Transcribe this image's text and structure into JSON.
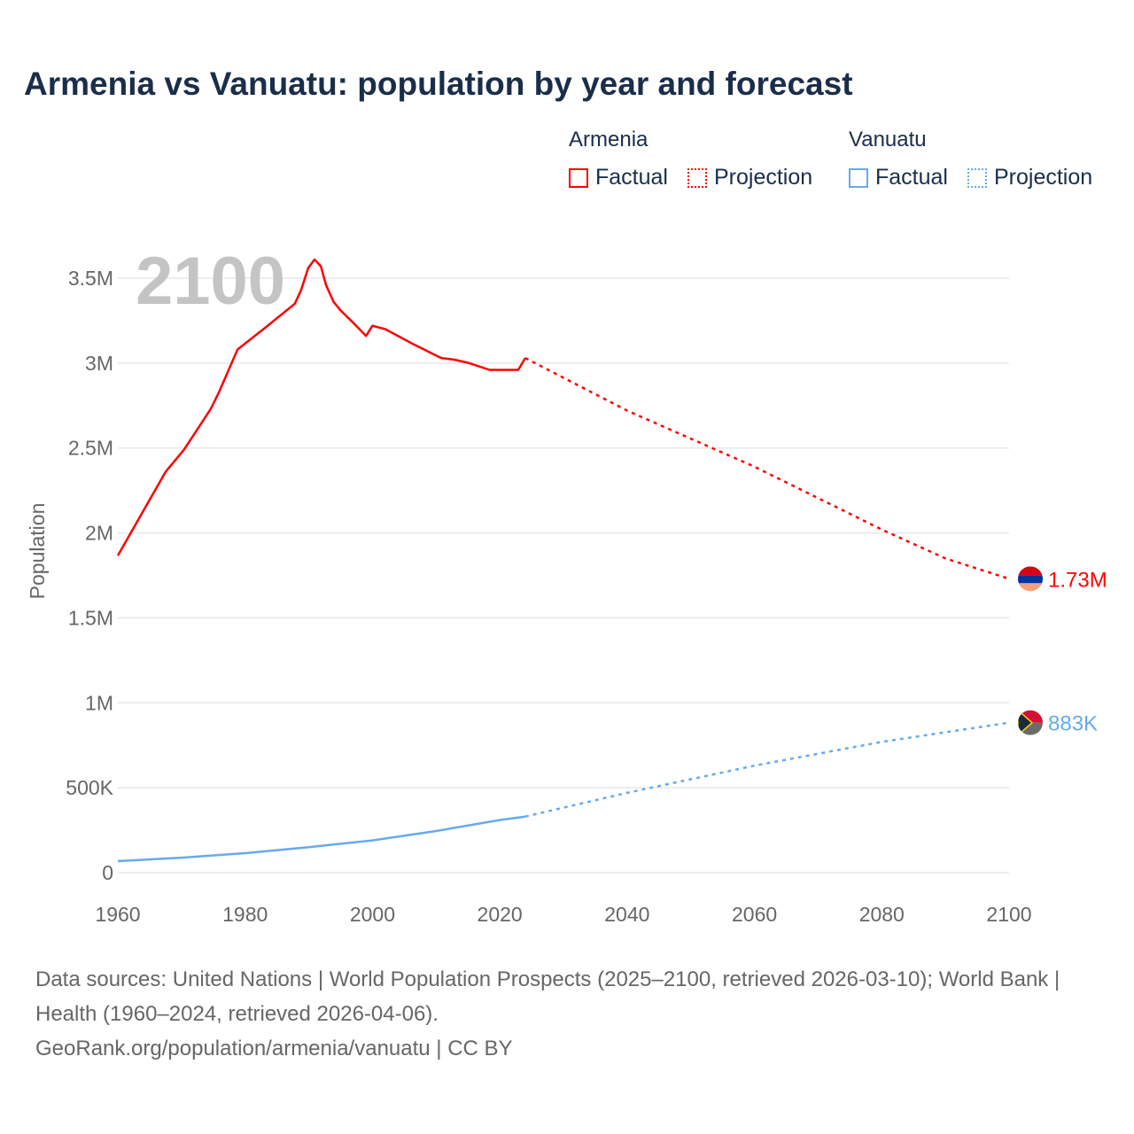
{
  "title": "Armenia vs Vanuatu: population by year and forecast",
  "legend": {
    "groups": [
      {
        "name": "Armenia",
        "color": "#ff0000",
        "factual": "Factual",
        "projection": "Projection"
      },
      {
        "name": "Vanuatu",
        "color": "#66aaee",
        "factual": "Factual",
        "projection": "Projection"
      }
    ]
  },
  "chart_data": {
    "type": "line",
    "title": "Armenia vs Vanuatu: population by year and forecast",
    "xlabel": "",
    "ylabel": "Population",
    "xlim": [
      1960,
      2100
    ],
    "ylim": [
      0,
      3500000
    ],
    "x_ticks": [
      1960,
      1980,
      2000,
      2020,
      2040,
      2060,
      2080,
      2100
    ],
    "y_ticks": [
      0,
      500000,
      1000000,
      1500000,
      2000000,
      2500000,
      3000000,
      3500000
    ],
    "y_tick_labels": [
      "0",
      "500K",
      "1M",
      "1.5M",
      "2M",
      "2.5M",
      "3M",
      "3.5M"
    ],
    "year_watermark": "2100",
    "series": [
      {
        "name": "Armenia",
        "kind": "Factual",
        "color": "#ff0000",
        "x": [
          1960,
          1967.5,
          1970.4,
          1974.6,
          1975.9,
          1978,
          1978.8,
          1983.2,
          1987.8,
          1988.8,
          1989.9,
          1990.9,
          1991.9,
          1992.7,
          1993.9,
          1995,
          1996.9,
          1999,
          2000,
          2002,
          2006.5,
          2010.8,
          2012.9,
          2015.2,
          2018.4,
          2020.8,
          2022.9,
          2024
        ],
        "y": [
          1867000,
          2360000,
          2490000,
          2730000,
          2830000,
          3010000,
          3080000,
          3210000,
          3350000,
          3430000,
          3560000,
          3610000,
          3570000,
          3460000,
          3360000,
          3310000,
          3240000,
          3160000,
          3220000,
          3200000,
          3110000,
          3030000,
          3020000,
          3000000,
          2960000,
          2960000,
          2960000,
          3030000
        ]
      },
      {
        "name": "Armenia",
        "kind": "Projection",
        "color": "#ff0000",
        "x": [
          2024,
          2040,
          2060,
          2080,
          2090,
          2100
        ],
        "y": [
          3030000,
          2720000,
          2390000,
          2020000,
          1850000,
          1730000
        ]
      },
      {
        "name": "Vanuatu",
        "kind": "Factual",
        "color": "#66aaee",
        "x": [
          1960,
          1970,
          1980,
          1990,
          2000,
          2010,
          2020,
          2024
        ],
        "y": [
          68000,
          88000,
          115000,
          150000,
          190000,
          245000,
          310000,
          330000
        ]
      },
      {
        "name": "Vanuatu",
        "kind": "Projection",
        "color": "#66aaee",
        "x": [
          2024,
          2040,
          2060,
          2080,
          2100
        ],
        "y": [
          330000,
          470000,
          630000,
          770000,
          883000
        ]
      }
    ],
    "end_labels": [
      {
        "name": "Armenia",
        "value": 1730000,
        "label": "1.73M",
        "color": "#ff0000"
      },
      {
        "name": "Vanuatu",
        "value": 883000,
        "label": "883K",
        "color": "#66aaee"
      }
    ]
  },
  "footer": {
    "line1": "Data sources: United Nations | World Population Prospects (2025–2100, retrieved 2026-03-10); World Bank | Health (1960–2024, retrieved 2026-04-06).",
    "line2": "GeoRank.org/population/armenia/vanuatu | CC BY"
  }
}
